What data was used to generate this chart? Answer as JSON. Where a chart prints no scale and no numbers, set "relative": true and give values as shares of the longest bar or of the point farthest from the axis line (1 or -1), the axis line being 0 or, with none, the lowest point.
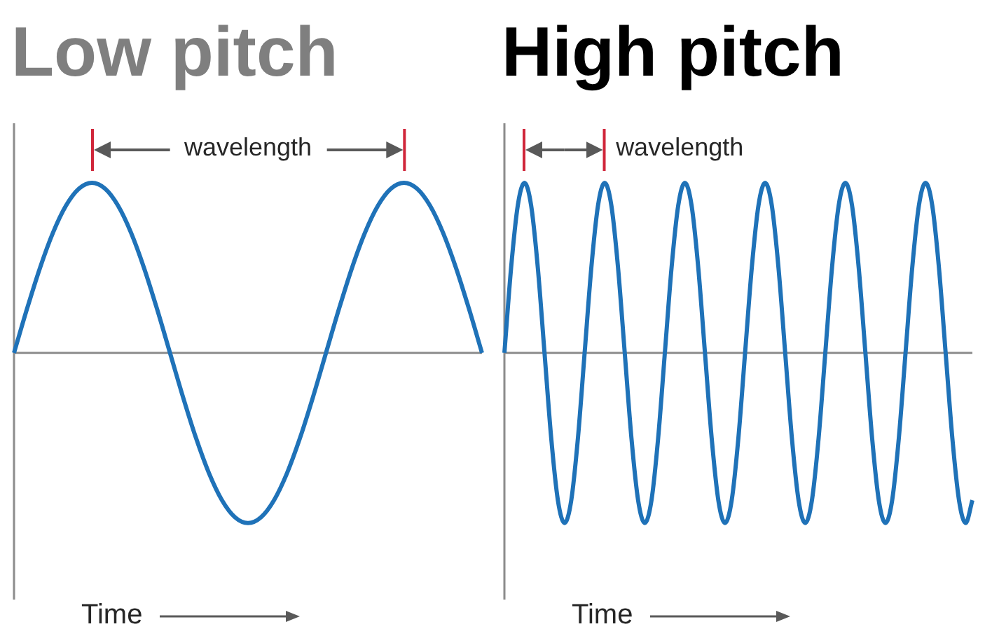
{
  "chart_data": [
    {
      "type": "line",
      "title": "Low pitch",
      "xlabel": "Time",
      "annotations": [
        "wavelength"
      ],
      "relative": true,
      "categories": [
        null,
        null,
        null,
        null,
        null,
        null,
        null,
        null,
        null,
        null,
        null,
        null,
        null,
        null,
        null,
        null,
        null,
        null,
        null,
        null,
        null,
        null,
        null,
        null,
        null,
        null,
        null,
        null,
        null,
        null,
        null,
        null,
        null,
        null,
        null,
        null,
        null
      ],
      "series": [
        {
          "color": "#1f72b8",
          "values": [
            0,
            0.259,
            0.5,
            0.707,
            0.866,
            0.966,
            1,
            0.966,
            0.866,
            0.707,
            0.5,
            0.259,
            0,
            -0.259,
            -0.5,
            -0.707,
            -0.866,
            -0.966,
            -1,
            -0.966,
            -0.866,
            -0.707,
            -0.5,
            -0.259,
            0,
            0.259,
            0.5,
            0.707,
            0.866,
            0.966,
            1,
            0.966,
            0.866,
            0.707,
            0.5,
            0.259,
            0
          ]
        }
      ]
    },
    {
      "type": "line",
      "title": "High pitch",
      "xlabel": "Time",
      "annotations": [
        "wavelength"
      ],
      "relative": true,
      "categories": [
        null,
        null,
        null,
        null,
        null,
        null,
        null,
        null,
        null,
        null,
        null,
        null,
        null,
        null,
        null,
        null,
        null,
        null,
        null,
        null,
        null,
        null,
        null,
        null,
        null,
        null,
        null,
        null,
        null,
        null,
        null,
        null,
        null,
        null,
        null,
        null,
        null,
        null,
        null,
        null,
        null,
        null,
        null,
        null,
        null,
        null,
        null,
        null,
        null,
        null,
        null,
        null,
        null,
        null,
        null,
        null,
        null,
        null,
        null,
        null,
        null,
        null,
        null,
        null,
        null,
        null,
        null,
        null,
        null,
        null,
        null
      ],
      "series": [
        {
          "color": "#1f72b8",
          "values": [
            0,
            0.5,
            0.866,
            1,
            0.866,
            0.5,
            0,
            -0.5,
            -0.866,
            -1,
            -0.866,
            -0.5,
            0,
            0.5,
            0.866,
            1,
            0.866,
            0.5,
            0,
            -0.5,
            -0.866,
            -1,
            -0.866,
            -0.5,
            0,
            0.5,
            0.866,
            1,
            0.866,
            0.5,
            0,
            -0.5,
            -0.866,
            -1,
            -0.866,
            -0.5,
            0,
            0.5,
            0.866,
            1,
            0.866,
            0.5,
            0,
            -0.5,
            -0.866,
            -1,
            -0.866,
            -0.5,
            0,
            0.5,
            0.866,
            1,
            0.866,
            0.5,
            0,
            -0.5,
            -0.866,
            -1,
            -0.866,
            -0.5,
            0,
            0.5,
            0.866,
            1,
            0.866,
            0.5,
            0,
            -0.5,
            -0.866,
            -1,
            -0.866
          ]
        }
      ]
    }
  ]
}
